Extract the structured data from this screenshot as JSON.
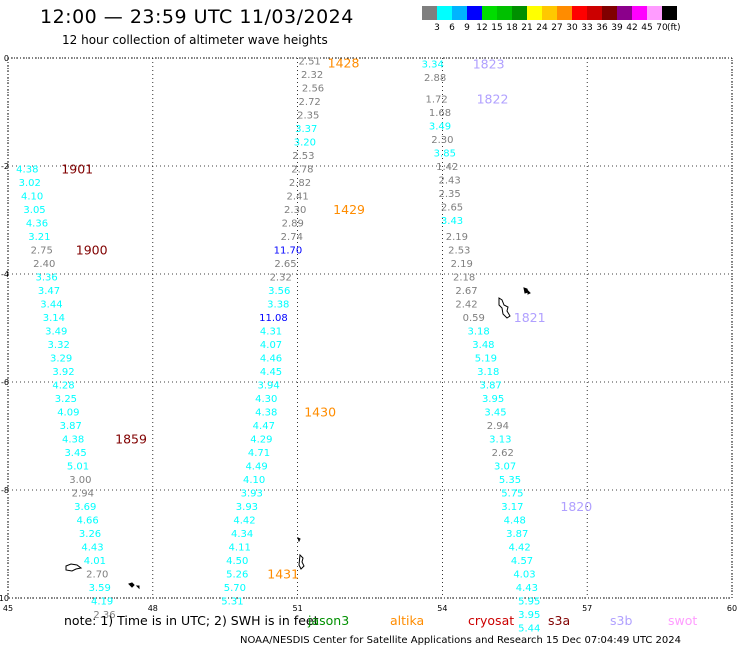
{
  "header": {
    "title": "12:00 — 23:59 UTC 11/03/2024",
    "subtitle": "12 hour collection of altimeter wave heights"
  },
  "colorbar": {
    "labels": [
      "3",
      "6",
      "9",
      "12",
      "15",
      "18",
      "21",
      "24",
      "27",
      "30",
      "33",
      "36",
      "39",
      "42",
      "45",
      "70"
    ],
    "units": "(ft)",
    "colors": [
      "#7f7f7f",
      "#00ffff",
      "#00b4ff",
      "#0000ff",
      "#00dd00",
      "#00c000",
      "#009000",
      "#ffff00",
      "#ffc800",
      "#ff8c00",
      "#ff0000",
      "#cc0000",
      "#800000",
      "#8b008b",
      "#ff00ff",
      "#ff9cff",
      "#000000"
    ]
  },
  "map": {
    "lon_range": [
      45,
      60
    ],
    "lat_range": [
      -10,
      0
    ],
    "lon_ticks": [
      "45",
      "48",
      "51",
      "54",
      "57",
      "60"
    ],
    "lat_ticks": [
      "0",
      "-2",
      "-4",
      "-6",
      "-8",
      "-10"
    ],
    "grid": "dotted",
    "passes": [
      {
        "id": "1428",
        "label": "1428",
        "color": "#ff8c00",
        "points": [
          [
            "2.51",
            51.25,
            -0.05,
            "#7f7f7f"
          ],
          [
            "2.32",
            51.3,
            -0.3,
            "#7f7f7f"
          ],
          [
            "2.56",
            51.32,
            -0.55,
            "#7f7f7f"
          ],
          [
            "2.72",
            51.25,
            -0.8,
            "#7f7f7f"
          ],
          [
            "2.35",
            51.22,
            -1.05,
            "#7f7f7f"
          ],
          [
            "3.37",
            51.18,
            -1.3,
            "#00ffff"
          ],
          [
            "3.20",
            51.15,
            -1.55,
            "#00ffff"
          ],
          [
            "2.53",
            51.12,
            -1.8,
            "#7f7f7f"
          ],
          [
            "2.78",
            51.1,
            -2.05,
            "#7f7f7f"
          ],
          [
            "2.82",
            51.05,
            -2.3,
            "#7f7f7f"
          ],
          [
            "2.41",
            51.0,
            -2.55,
            "#7f7f7f"
          ]
        ]
      },
      {
        "id": "1429",
        "label": "1429",
        "color": "#ff8c00",
        "points": [
          [
            "2.30",
            50.95,
            -2.8,
            "#7f7f7f"
          ],
          [
            "2.89",
            50.9,
            -3.05,
            "#7f7f7f"
          ],
          [
            "2.74",
            50.88,
            -3.3,
            "#7f7f7f"
          ],
          [
            "11.70",
            50.8,
            -3.55,
            "#0000ff"
          ],
          [
            "2.65",
            50.75,
            -3.8,
            "#7f7f7f"
          ],
          [
            "2.32",
            50.65,
            -4.05,
            "#7f7f7f"
          ],
          [
            "3.56",
            50.62,
            -4.3,
            "#00ffff"
          ],
          [
            "3.38",
            50.6,
            -4.55,
            "#00ffff"
          ],
          [
            "11.08",
            50.5,
            -4.8,
            "#0000ff"
          ],
          [
            "4.31",
            50.45,
            -5.05,
            "#00ffff"
          ],
          [
            "4.07",
            50.45,
            -5.3,
            "#00ffff"
          ],
          [
            "4.46",
            50.45,
            -5.55,
            "#00ffff"
          ],
          [
            "4.45",
            50.45,
            -5.8,
            "#00ffff"
          ],
          [
            "3.94",
            50.4,
            -6.05,
            "#00ffff"
          ],
          [
            "4.30",
            50.35,
            -6.3,
            "#00ffff"
          ]
        ]
      },
      {
        "id": "1430",
        "label": "1430",
        "color": "#ff8c00",
        "points": [
          [
            "4.38",
            50.35,
            -6.55,
            "#00ffff"
          ],
          [
            "4.47",
            50.3,
            -6.8,
            "#00ffff"
          ],
          [
            "4.29",
            50.25,
            -7.05,
            "#00ffff"
          ],
          [
            "4.71",
            50.2,
            -7.3,
            "#00ffff"
          ],
          [
            "4.49",
            50.15,
            -7.55,
            "#00ffff"
          ],
          [
            "4.10",
            50.1,
            -7.8,
            "#00ffff"
          ],
          [
            "3.93",
            50.05,
            -8.05,
            "#00ffff"
          ],
          [
            "3.93",
            49.95,
            -8.3,
            "#00ffff"
          ],
          [
            "4.42",
            49.9,
            -8.55,
            "#00ffff"
          ],
          [
            "4.34",
            49.85,
            -8.8,
            "#00ffff"
          ],
          [
            "4.11",
            49.8,
            -9.05,
            "#00ffff"
          ],
          [
            "4.50",
            49.75,
            -9.3,
            "#00ffff"
          ]
        ]
      },
      {
        "id": "1431",
        "label": "1431",
        "color": "#ff8c00",
        "points": [
          [
            "5.26",
            49.75,
            -9.55,
            "#00ffff"
          ],
          [
            "5.70",
            49.7,
            -9.8,
            "#00ffff"
          ],
          [
            "5.31",
            49.65,
            -10.05,
            "#00ffff"
          ]
        ]
      },
      {
        "id": "1823",
        "label": "1823",
        "color": "#b0a0ff",
        "points": [
          [
            "3.34",
            53.8,
            -0.1,
            "#00ffff"
          ],
          [
            "2.88",
            53.85,
            -0.35,
            "#7f7f7f"
          ]
        ]
      },
      {
        "id": "1822",
        "label": "1822",
        "color": "#b0a0ff",
        "points": [
          [
            "1.72",
            53.88,
            -0.75,
            "#7f7f7f"
          ],
          [
            "1.68",
            53.95,
            -1.0,
            "#7f7f7f"
          ],
          [
            "3.49",
            53.95,
            -1.25,
            "#00ffff"
          ],
          [
            "2.30",
            54.0,
            -1.5,
            "#7f7f7f"
          ],
          [
            "3.85",
            54.05,
            -1.75,
            "#00ffff"
          ],
          [
            "1.42",
            54.1,
            -2.0,
            "#7f7f7f"
          ],
          [
            "2.43",
            54.15,
            -2.25,
            "#7f7f7f"
          ],
          [
            "2.35",
            54.15,
            -2.5,
            "#7f7f7f"
          ],
          [
            "2.65",
            54.2,
            -2.75,
            "#7f7f7f"
          ],
          [
            "3.43",
            54.2,
            -3.0,
            "#00ffff"
          ],
          [
            "2.19",
            54.3,
            -3.3,
            "#7f7f7f"
          ],
          [
            "2.53",
            54.35,
            -3.55,
            "#7f7f7f"
          ],
          [
            "2.19",
            54.4,
            -3.8,
            "#7f7f7f"
          ],
          [
            "2.18",
            54.45,
            -4.05,
            "#7f7f7f"
          ],
          [
            "2.67",
            54.5,
            -4.3,
            "#7f7f7f"
          ],
          [
            "2.42",
            54.5,
            -4.55,
            "#7f7f7f"
          ]
        ]
      },
      {
        "id": "1821",
        "label": "1821",
        "color": "#b0a0ff",
        "points": [
          [
            "0.59",
            54.65,
            -4.8,
            "#7f7f7f"
          ],
          [
            "3.18",
            54.75,
            -5.05,
            "#00ffff"
          ],
          [
            "3.48",
            54.85,
            -5.3,
            "#00ffff"
          ],
          [
            "5.19",
            54.9,
            -5.55,
            "#00ffff"
          ],
          [
            "3.18",
            54.95,
            -5.8,
            "#00ffff"
          ],
          [
            "3.87",
            55.0,
            -6.05,
            "#00ffff"
          ],
          [
            "3.95",
            55.05,
            -6.3,
            "#00ffff"
          ],
          [
            "3.45",
            55.1,
            -6.55,
            "#00ffff"
          ],
          [
            "2.94",
            55.15,
            -6.8,
            "#7f7f7f"
          ],
          [
            "3.13",
            55.2,
            -7.05,
            "#00ffff"
          ],
          [
            "2.62",
            55.25,
            -7.3,
            "#7f7f7f"
          ],
          [
            "3.07",
            55.3,
            -7.55,
            "#00ffff"
          ],
          [
            "5.35",
            55.4,
            -7.8,
            "#00ffff"
          ],
          [
            "5.75",
            55.45,
            -8.05,
            "#00ffff"
          ]
        ]
      },
      {
        "id": "1820",
        "label": "1820",
        "color": "#b0a0ff",
        "points": [
          [
            "3.17",
            55.45,
            -8.3,
            "#00ffff"
          ],
          [
            "4.48",
            55.5,
            -8.55,
            "#00ffff"
          ],
          [
            "3.87",
            55.55,
            -8.8,
            "#00ffff"
          ],
          [
            "4.42",
            55.6,
            -9.05,
            "#00ffff"
          ],
          [
            "4.57",
            55.65,
            -9.3,
            "#00ffff"
          ],
          [
            "4.03",
            55.7,
            -9.55,
            "#00ffff"
          ],
          [
            "4.43",
            55.75,
            -9.8,
            "#00ffff"
          ],
          [
            "5.95",
            55.8,
            -10.05,
            "#00ffff"
          ],
          [
            "3.95",
            55.8,
            -10.3,
            "#00ffff"
          ],
          [
            "5.44",
            55.8,
            -10.55,
            "#00ffff"
          ]
        ]
      },
      {
        "id": "1901",
        "label": "1901",
        "color": "#800000",
        "points": [
          [
            "4.38",
            45.4,
            -2.05,
            "#00ffff"
          ],
          [
            "3.02",
            45.45,
            -2.3,
            "#00ffff"
          ],
          [
            "4.10",
            45.5,
            -2.55,
            "#00ffff"
          ],
          [
            "3.05",
            45.55,
            -2.8,
            "#00ffff"
          ],
          [
            "4.36",
            45.6,
            -3.05,
            "#00ffff"
          ],
          [
            "3.21",
            45.65,
            -3.3,
            "#00ffff"
          ]
        ]
      },
      {
        "id": "1900",
        "label": "1900",
        "color": "#800000",
        "points": [
          [
            "2.75",
            45.7,
            -3.55,
            "#7f7f7f"
          ],
          [
            "2.40",
            45.75,
            -3.8,
            "#7f7f7f"
          ],
          [
            "3.36",
            45.8,
            -4.05,
            "#00ffff"
          ],
          [
            "3.47",
            45.85,
            -4.3,
            "#00ffff"
          ],
          [
            "3.44",
            45.9,
            -4.55,
            "#00ffff"
          ],
          [
            "3.14",
            45.95,
            -4.8,
            "#00ffff"
          ],
          [
            "3.49",
            46.0,
            -5.05,
            "#00ffff"
          ],
          [
            "3.32",
            46.05,
            -5.3,
            "#00ffff"
          ],
          [
            "3.29",
            46.1,
            -5.55,
            "#00ffff"
          ],
          [
            "3.92",
            46.15,
            -5.8,
            "#00ffff"
          ],
          [
            "4.28",
            46.15,
            -6.05,
            "#00ffff"
          ],
          [
            "3.25",
            46.2,
            -6.3,
            "#00ffff"
          ],
          [
            "4.09",
            46.25,
            -6.55,
            "#00ffff"
          ],
          [
            "3.87",
            46.3,
            -6.8,
            "#00ffff"
          ]
        ]
      },
      {
        "id": "1859",
        "label": "1859",
        "color": "#800000",
        "points": [
          [
            "4.38",
            46.35,
            -7.05,
            "#00ffff"
          ],
          [
            "3.45",
            46.4,
            -7.3,
            "#00ffff"
          ],
          [
            "5.01",
            46.45,
            -7.55,
            "#00ffff"
          ],
          [
            "3.00",
            46.5,
            -7.8,
            "#7f7f7f"
          ],
          [
            "2.94",
            46.55,
            -8.05,
            "#7f7f7f"
          ],
          [
            "3.69",
            46.6,
            -8.3,
            "#00ffff"
          ],
          [
            "4.66",
            46.65,
            -8.55,
            "#00ffff"
          ],
          [
            "3.26",
            46.7,
            -8.8,
            "#00ffff"
          ],
          [
            "4.43",
            46.75,
            -9.05,
            "#00ffff"
          ],
          [
            "4.01",
            46.8,
            -9.3,
            "#00ffff"
          ],
          [
            "2.70",
            46.85,
            -9.55,
            "#7f7f7f"
          ],
          [
            "3.59",
            46.9,
            -9.8,
            "#00ffff"
          ],
          [
            "4.19",
            46.95,
            -10.05,
            "#00ffff"
          ],
          [
            "2.36",
            47.0,
            -10.3,
            "#7f7f7f"
          ]
        ]
      }
    ]
  },
  "footer": {
    "note": "note:  1) Time is in UTC; 2) SWH is in feet",
    "satellites": [
      {
        "name": "jason3",
        "color": "#009000"
      },
      {
        "name": "altika",
        "color": "#ff8c00"
      },
      {
        "name": "cryosat",
        "color": "#cc0000"
      },
      {
        "name": "s3a",
        "color": "#800000"
      },
      {
        "name": "s3b",
        "color": "#b0a0ff"
      },
      {
        "name": "swot",
        "color": "#ff9cff"
      }
    ],
    "credit": "NOAA/NESDIS Center for Satellite Applications and Research    15 Dec 07:04:49 UTC 2024"
  }
}
